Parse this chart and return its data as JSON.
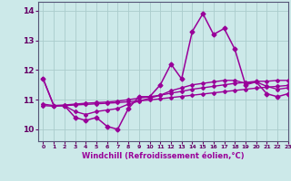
{
  "title": "",
  "xlabel": "Windchill (Refroidissement éolien,°C)",
  "ylabel": "",
  "xlim": [
    -0.5,
    23
  ],
  "ylim": [
    9.6,
    14.3
  ],
  "xticks": [
    0,
    1,
    2,
    3,
    4,
    5,
    6,
    7,
    8,
    9,
    10,
    11,
    12,
    13,
    14,
    15,
    16,
    17,
    18,
    19,
    20,
    21,
    22,
    23
  ],
  "yticks": [
    10,
    11,
    12,
    13,
    14
  ],
  "background_color": "#cce9e9",
  "line_color": "#990099",
  "grid_color": "#aacccc",
  "series": [
    [
      11.7,
      10.8,
      10.8,
      10.4,
      10.3,
      10.4,
      10.1,
      10.0,
      10.7,
      11.1,
      11.1,
      11.5,
      12.2,
      11.7,
      13.3,
      13.9,
      13.2,
      13.4,
      12.7,
      11.5,
      11.6,
      11.2,
      11.1,
      11.2
    ],
    [
      11.7,
      10.8,
      10.8,
      10.6,
      10.5,
      10.6,
      10.65,
      10.7,
      10.85,
      10.95,
      11.05,
      11.15,
      11.3,
      11.4,
      11.5,
      11.55,
      11.6,
      11.65,
      11.65,
      11.55,
      11.6,
      11.45,
      11.35,
      11.4
    ],
    [
      10.85,
      10.8,
      10.82,
      10.85,
      10.88,
      10.9,
      10.92,
      10.95,
      11.0,
      11.05,
      11.1,
      11.15,
      11.22,
      11.28,
      11.35,
      11.4,
      11.45,
      11.5,
      11.55,
      11.58,
      11.62,
      11.62,
      11.65,
      11.65
    ],
    [
      10.8,
      10.78,
      10.8,
      10.82,
      10.84,
      10.86,
      10.88,
      10.9,
      10.93,
      10.96,
      10.99,
      11.03,
      11.07,
      11.11,
      11.15,
      11.19,
      11.23,
      11.27,
      11.31,
      11.35,
      11.39,
      11.42,
      11.45,
      11.48
    ]
  ]
}
